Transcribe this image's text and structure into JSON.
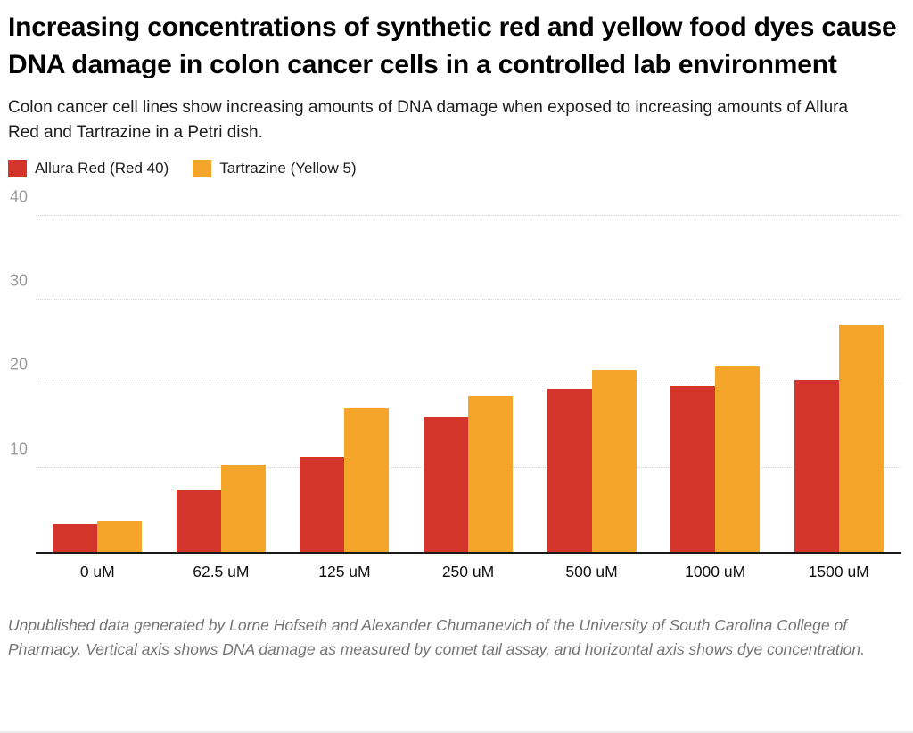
{
  "header": {
    "title": "Increasing concentrations of synthetic red and yellow food dyes cause DNA damage in colon cancer cells in a controlled lab environment",
    "subtitle": "Colon cancer cell lines show increasing amounts of DNA damage when exposed to increasing amounts of Allura Red and Tartrazine in a Petri dish."
  },
  "legend": {
    "items": [
      {
        "label": "Allura Red (Red 40)",
        "color": "#d4352b"
      },
      {
        "label": "Tartrazine (Yellow 5)",
        "color": "#f5a62a"
      }
    ]
  },
  "chart_data": {
    "type": "bar",
    "categories": [
      "0 uM",
      "62.5 uM",
      "125 uM",
      "250 uM",
      "500 uM",
      "1000 uM",
      "1500 uM"
    ],
    "series": [
      {
        "name": "Allura Red (Red 40)",
        "color": "#d4352b",
        "values": [
          3.3,
          7.4,
          11.2,
          16.0,
          19.4,
          19.7,
          20.5
        ]
      },
      {
        "name": "Tartrazine (Yellow 5)",
        "color": "#f5a62a",
        "values": [
          3.7,
          10.4,
          17.1,
          18.6,
          21.6,
          22.1,
          27.0
        ]
      }
    ],
    "y_ticks": [
      10,
      20,
      30,
      40
    ],
    "ylim": [
      0,
      42
    ],
    "grid": "horizontal-dotted",
    "legend_position": "top-left",
    "xlabel": "",
    "ylabel": ""
  },
  "footer": {
    "note": "Unpublished data generated by Lorne Hofseth and Alexander Chumanevich of the University of South Carolina College of Pharmacy. Vertical axis shows DNA damage as measured by comet tail assay, and horizontal axis shows dye concentration."
  },
  "colors": {
    "axis_line": "#1a1a1a",
    "gridline": "#d6d6d6",
    "y_tick_text": "#9b9b9b",
    "background": "#ffffff"
  }
}
